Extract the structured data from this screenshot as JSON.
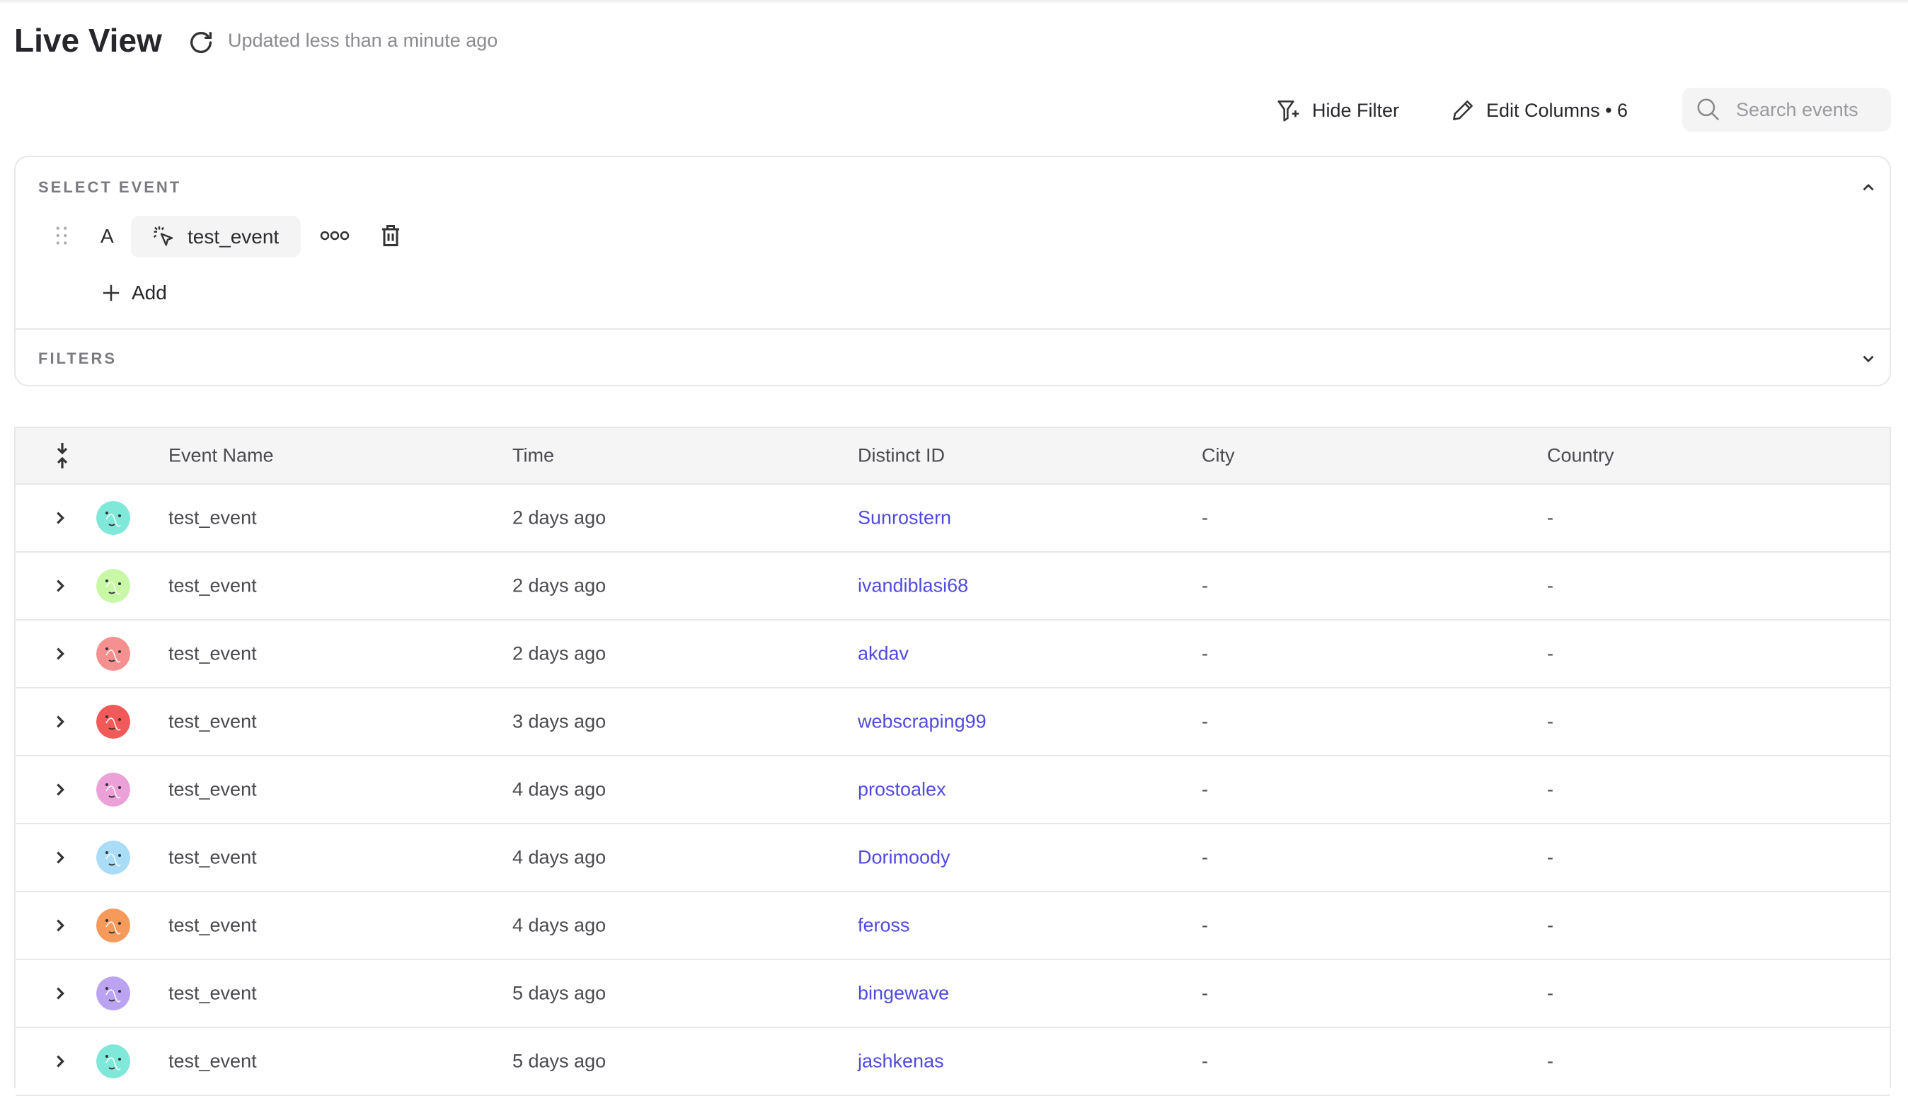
{
  "header": {
    "title": "Live View",
    "updated": "Updated less than a minute ago"
  },
  "toolbar": {
    "hide_filter": "Hide Filter",
    "edit_columns": "Edit Columns • 6",
    "search_placeholder": "Search events"
  },
  "panel": {
    "select_event_label": "SELECT EVENT",
    "event_letter": "A",
    "event_name": "test_event",
    "add_label": "Add",
    "filters_label": "FILTERS"
  },
  "table": {
    "columns": [
      "Event Name",
      "Time",
      "Distinct ID",
      "City",
      "Country"
    ],
    "rows": [
      {
        "event": "test_event",
        "time": "2 days ago",
        "distinct_id": "Sunrostern",
        "city": "-",
        "country": "-",
        "avatar_color": "#7fe8d8"
      },
      {
        "event": "test_event",
        "time": "2 days ago",
        "distinct_id": "ivandiblasi68",
        "city": "-",
        "country": "-",
        "avatar_color": "#c8f7a6"
      },
      {
        "event": "test_event",
        "time": "2 days ago",
        "distinct_id": "akdav",
        "city": "-",
        "country": "-",
        "avatar_color": "#f59090"
      },
      {
        "event": "test_event",
        "time": "3 days ago",
        "distinct_id": "webscraping99",
        "city": "-",
        "country": "-",
        "avatar_color": "#f25a5a"
      },
      {
        "event": "test_event",
        "time": "4 days ago",
        "distinct_id": "prostoalex",
        "city": "-",
        "country": "-",
        "avatar_color": "#eba0d8"
      },
      {
        "event": "test_event",
        "time": "4 days ago",
        "distinct_id": "Dorimoody",
        "city": "-",
        "country": "-",
        "avatar_color": "#a9dcf6"
      },
      {
        "event": "test_event",
        "time": "4 days ago",
        "distinct_id": "feross",
        "city": "-",
        "country": "-",
        "avatar_color": "#f69a5c"
      },
      {
        "event": "test_event",
        "time": "5 days ago",
        "distinct_id": "bingewave",
        "city": "-",
        "country": "-",
        "avatar_color": "#bba3f2"
      },
      {
        "event": "test_event",
        "time": "5 days ago",
        "distinct_id": "jashkenas",
        "city": "-",
        "country": "-",
        "avatar_color": "#7fe8d8"
      }
    ]
  },
  "colors": {
    "link": "#4f4ae0"
  }
}
